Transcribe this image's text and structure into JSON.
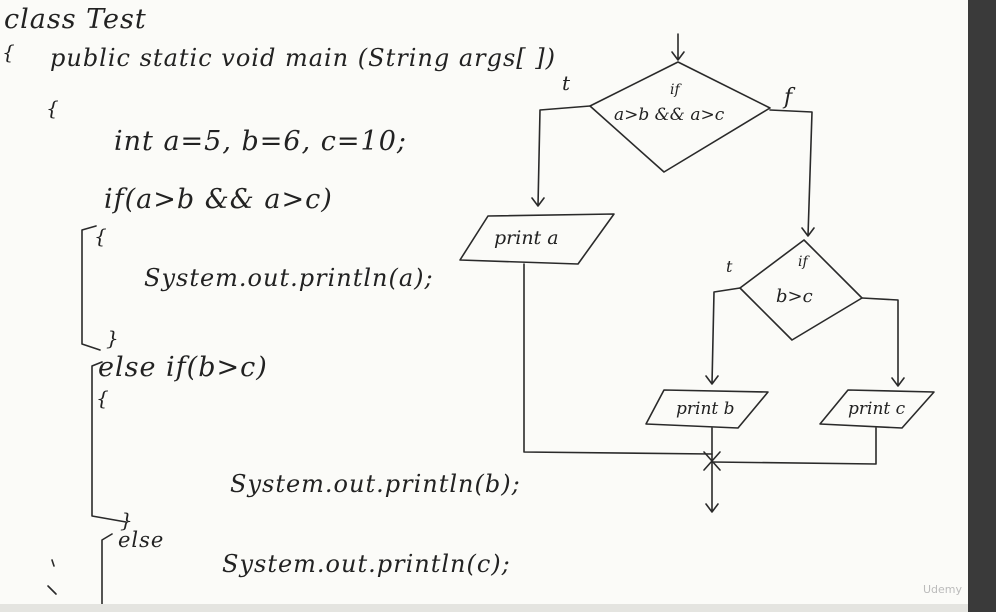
{
  "code": {
    "class_decl": "class  Test",
    "open_brace_1": "{",
    "main_sig": "public  static  void  main (String  args[ ])",
    "open_brace_2": "{",
    "decl": "int   a=5, b=6, c=10;",
    "if_cond": "if(a>b  &&  a>c)",
    "brace_open_a": "{",
    "print_a": "System.out.println(a);",
    "brace_close_a": "}",
    "else_if": "else  if(b>c)",
    "brace_open_b": "{",
    "print_b": "System.out.println(b);",
    "brace_close_b": "}",
    "else": "else",
    "print_c": "System.out.println(c);"
  },
  "flowchart": {
    "decision1_if": "if",
    "decision1_cond": "a>b && a>c",
    "true_label_1": "t",
    "false_label_1": "f",
    "print_a": "print a",
    "decision2_if": "if",
    "decision2_cond": "b>c",
    "true_label_2": "t",
    "print_b": "print b",
    "print_c": "print c"
  },
  "watermark": "Udemy"
}
